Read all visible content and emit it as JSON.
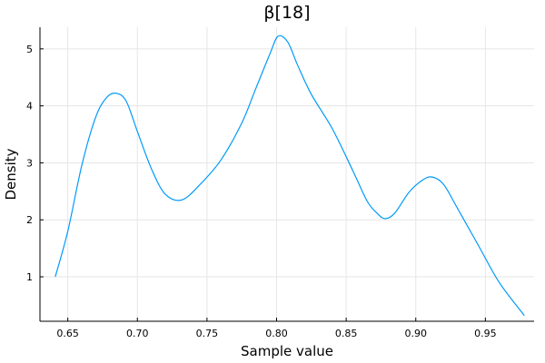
{
  "chart_data": {
    "type": "line",
    "title": "β[18]",
    "xlabel": "Sample value",
    "ylabel": "Density",
    "xlim": [
      0.63,
      0.985
    ],
    "ylim": [
      0.22,
      5.38
    ],
    "xticks": [
      0.65,
      0.7,
      0.75,
      0.8,
      0.85,
      0.9,
      0.95
    ],
    "xtick_labels": [
      "0.65",
      "0.70",
      "0.75",
      "0.80",
      "0.85",
      "0.90",
      "0.95"
    ],
    "yticks": [
      1,
      2,
      3,
      4,
      5
    ],
    "ytick_labels": [
      "1",
      "2",
      "3",
      "4",
      "5"
    ],
    "grid": true,
    "legend": "none",
    "series": [
      {
        "color": "#009AFA",
        "x": [
          0.641,
          0.65,
          0.66,
          0.67,
          0.678,
          0.685,
          0.692,
          0.7,
          0.71,
          0.72,
          0.732,
          0.745,
          0.76,
          0.775,
          0.785,
          0.795,
          0.801,
          0.808,
          0.815,
          0.825,
          0.84,
          0.855,
          0.865,
          0.872,
          0.878,
          0.885,
          0.895,
          0.905,
          0.912,
          0.92,
          0.93,
          0.945,
          0.96,
          0.978
        ],
        "y": [
          1.0,
          1.8,
          2.95,
          3.8,
          4.15,
          4.22,
          4.08,
          3.55,
          2.9,
          2.45,
          2.35,
          2.62,
          3.05,
          3.7,
          4.3,
          4.9,
          5.22,
          5.12,
          4.72,
          4.2,
          3.6,
          2.85,
          2.33,
          2.12,
          2.02,
          2.12,
          2.48,
          2.7,
          2.75,
          2.62,
          2.2,
          1.55,
          0.9,
          0.32
        ]
      }
    ]
  }
}
